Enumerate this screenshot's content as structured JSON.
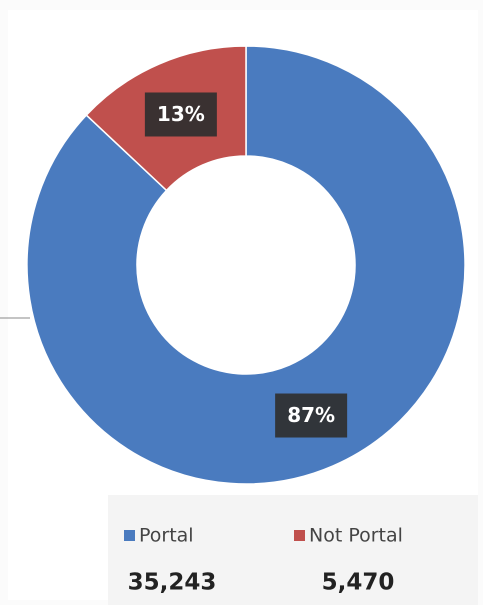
{
  "chart_data": {
    "type": "donut",
    "categories": [
      "Portal",
      "Not Portal"
    ],
    "values": [
      87,
      13
    ],
    "value_labels": [
      "87%",
      "13%"
    ],
    "colors": [
      "#4a7bbf",
      "#c0504d"
    ],
    "counts": [
      "35,243",
      "5,470"
    ],
    "legend": "bottom"
  }
}
